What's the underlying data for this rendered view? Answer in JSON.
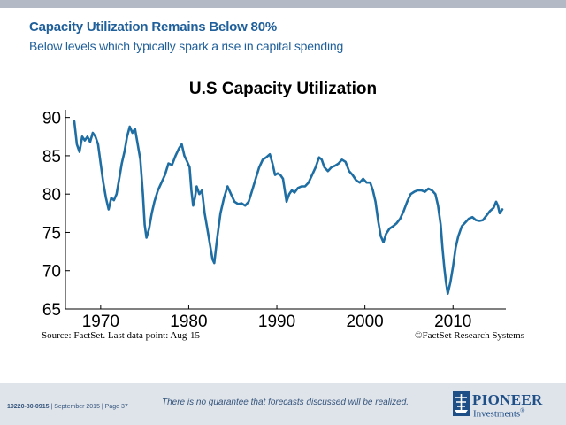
{
  "slide": {
    "title": "Capacity Utilization Remains Below 80%",
    "subtitle": "Below levels which typically spark a rise in capital spending"
  },
  "chart_data": {
    "type": "line",
    "title": "U.S Capacity Utilization",
    "xlabel": "",
    "ylabel": "",
    "xlim": [
      1966,
      2016
    ],
    "ylim": [
      65,
      91
    ],
    "x_ticks": [
      1970,
      1980,
      1990,
      2000,
      2010
    ],
    "y_ticks": [
      65,
      70,
      75,
      80,
      85,
      90
    ],
    "grid": false,
    "line_color": "#1f6ea3",
    "series": [
      {
        "x": [
          1967.0,
          1967.3,
          1967.6,
          1967.9,
          1968.2,
          1968.5,
          1968.8,
          1969.1,
          1969.4,
          1969.7,
          1970.0,
          1970.3,
          1970.6,
          1970.9,
          1971.2,
          1971.5,
          1971.8,
          1972.1,
          1972.4,
          1972.7,
          1973.0,
          1973.3,
          1973.6,
          1973.9,
          1974.2,
          1974.5,
          1974.8,
          1975.0,
          1975.2,
          1975.5,
          1975.8,
          1976.1,
          1976.5,
          1976.9,
          1977.3,
          1977.7,
          1978.1,
          1978.5,
          1978.9,
          1979.2,
          1979.5,
          1979.8,
          1980.1,
          1980.3,
          1980.5,
          1980.7,
          1980.9,
          1981.2,
          1981.5,
          1981.8,
          1982.1,
          1982.4,
          1982.7,
          1982.9,
          1983.2,
          1983.6,
          1984.0,
          1984.4,
          1984.8,
          1985.2,
          1985.6,
          1986.0,
          1986.4,
          1986.8,
          1987.2,
          1987.6,
          1988.0,
          1988.4,
          1988.8,
          1989.2,
          1989.5,
          1989.8,
          1990.1,
          1990.4,
          1990.7,
          1990.9,
          1991.1,
          1991.4,
          1991.7,
          1992.0,
          1992.4,
          1992.8,
          1993.2,
          1993.6,
          1994.0,
          1994.4,
          1994.8,
          1995.1,
          1995.4,
          1995.8,
          1996.2,
          1996.6,
          1997.0,
          1997.4,
          1997.8,
          1998.2,
          1998.6,
          1999.0,
          1999.4,
          1999.8,
          2000.2,
          2000.6,
          2000.9,
          2001.2,
          2001.5,
          2001.8,
          2002.1,
          2002.4,
          2002.8,
          2003.2,
          2003.6,
          2004.0,
          2004.4,
          2004.8,
          2005.2,
          2005.6,
          2006.0,
          2006.4,
          2006.8,
          2007.2,
          2007.6,
          2008.0,
          2008.3,
          2008.6,
          2008.8,
          2009.0,
          2009.2,
          2009.4,
          2009.7,
          2010.0,
          2010.3,
          2010.6,
          2011.0,
          2011.4,
          2011.8,
          2012.2,
          2012.6,
          2013.0,
          2013.4,
          2013.8,
          2014.2,
          2014.6,
          2014.9,
          2015.1,
          2015.3,
          2015.6
        ],
        "values": [
          89.5,
          86.5,
          85.5,
          87.5,
          87.0,
          87.5,
          86.8,
          88.0,
          87.5,
          86.5,
          84.0,
          81.5,
          79.5,
          78.0,
          79.5,
          79.2,
          80.0,
          82.0,
          84.0,
          85.5,
          87.5,
          88.8,
          88.0,
          88.5,
          86.5,
          84.5,
          80.0,
          76.0,
          74.3,
          75.5,
          77.5,
          79.0,
          80.5,
          81.5,
          82.5,
          84.0,
          83.8,
          85.0,
          86.0,
          86.5,
          85.0,
          84.3,
          83.5,
          80.5,
          78.5,
          79.5,
          81.0,
          80.0,
          80.5,
          77.5,
          75.5,
          73.5,
          71.5,
          71.0,
          74.0,
          77.5,
          79.5,
          81.0,
          80.0,
          79.0,
          78.7,
          78.8,
          78.5,
          79.0,
          80.5,
          82.0,
          83.5,
          84.5,
          84.8,
          85.2,
          84.0,
          82.5,
          82.7,
          82.5,
          82.0,
          80.5,
          79.0,
          80.0,
          80.5,
          80.2,
          80.8,
          81.0,
          81.0,
          81.5,
          82.5,
          83.5,
          84.8,
          84.5,
          83.5,
          83.0,
          83.5,
          83.7,
          84.0,
          84.5,
          84.2,
          83.0,
          82.5,
          81.8,
          81.5,
          82.0,
          81.5,
          81.5,
          80.5,
          79.0,
          76.5,
          74.5,
          73.7,
          74.8,
          75.5,
          75.8,
          76.2,
          76.8,
          77.8,
          79.0,
          80.0,
          80.3,
          80.5,
          80.5,
          80.3,
          80.7,
          80.5,
          80.0,
          78.5,
          76.0,
          73.0,
          70.5,
          68.5,
          67.0,
          68.5,
          70.5,
          73.0,
          74.5,
          75.8,
          76.3,
          76.8,
          77.0,
          76.6,
          76.5,
          76.6,
          77.2,
          77.8,
          78.2,
          79.0,
          78.5,
          77.5,
          78.0
        ]
      }
    ]
  },
  "notes": {
    "source": "Source: FactSet. Last data point: Aug-15",
    "copyright": "©FactSet Research Systems"
  },
  "footer": {
    "disclaimer": "There is no guarantee that forecasts discussed will be realized.",
    "code": "19220-80-0915",
    "date_page": " | September 2015 | Page 37"
  },
  "brand": {
    "name": "PIONEER",
    "sub": "Investments",
    "mark": "®",
    "accent": "#1f4f87"
  }
}
